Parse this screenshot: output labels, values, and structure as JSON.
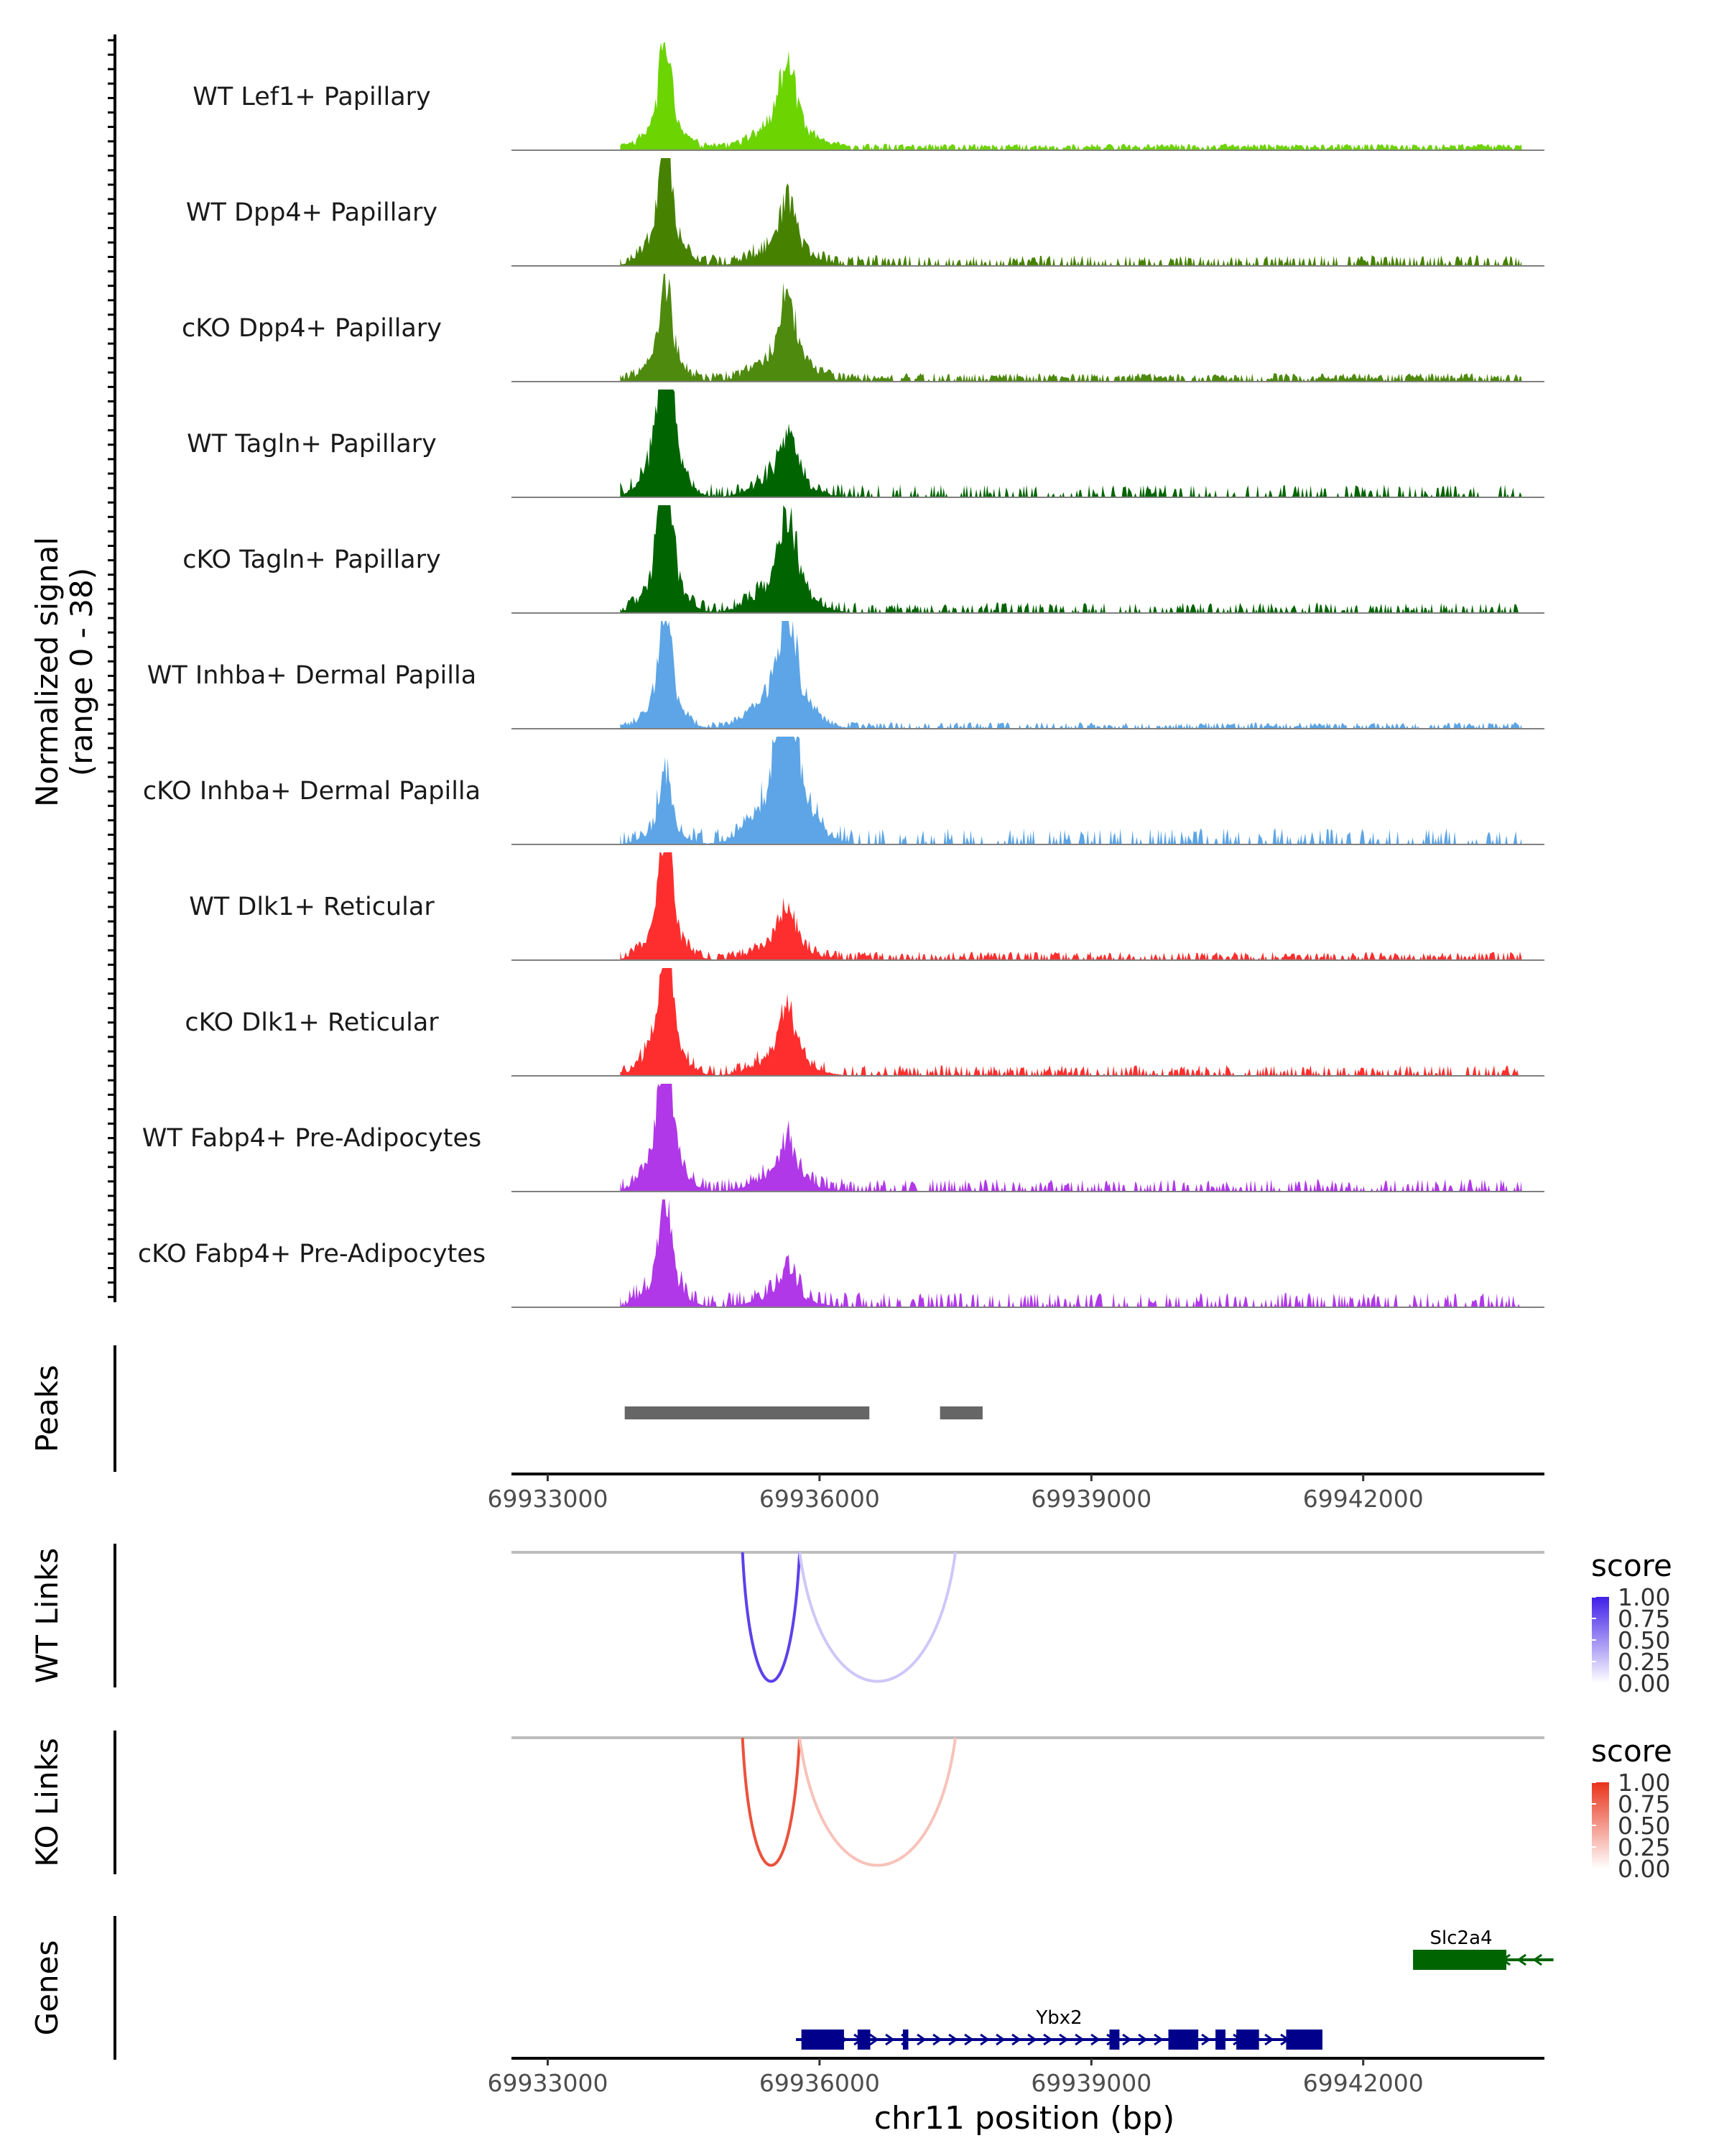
{
  "chart_data": {
    "type": "area",
    "title": "",
    "chromosome": "chr11",
    "xlim": [
      69932600,
      69944000
    ],
    "xlabel": "chr11 position (bp)",
    "x_ticks": [
      69933000,
      69936000,
      69939000,
      69942000
    ],
    "x_tick_labels": [
      "69933000",
      "69936000",
      "69939000",
      "69942000"
    ],
    "coverage": {
      "ylabel_line1": "Normalized signal",
      "ylabel_line2": "(range 0 - 38)",
      "ylim": [
        0,
        38
      ],
      "peak_centers": [
        69934300,
        69935650
      ],
      "tracks": [
        {
          "name": "WT Lef1+ Papillary",
          "color": "#6CD400",
          "peaks": [
            0.9,
            0.75
          ],
          "min_level": 0.02,
          "max_level": 0.06,
          "sparsity": 0.2,
          "seed": 11
        },
        {
          "name": "WT Dpp4+ Papillary",
          "color": "#468200",
          "peaks": [
            1.2,
            0.55
          ],
          "min_level": 0.03,
          "max_level": 0.1,
          "sparsity": 0.5,
          "seed": 23
        },
        {
          "name": "cKO Dpp4+ Papillary",
          "color": "#4E8A0E",
          "peaks": [
            0.8,
            0.7
          ],
          "min_level": 0.02,
          "max_level": 0.08,
          "sparsity": 0.3,
          "seed": 37
        },
        {
          "name": "WT Tagln+ Papillary",
          "color": "#006400",
          "peaks": [
            1.7,
            0.55
          ],
          "min_level": 0.02,
          "max_level": 0.12,
          "sparsity": 0.6,
          "seed": 41
        },
        {
          "name": "cKO Tagln+ Papillary",
          "color": "#006400",
          "peaks": [
            1.4,
            0.85
          ],
          "min_level": 0.02,
          "max_level": 0.1,
          "sparsity": 0.55,
          "seed": 53
        },
        {
          "name": "WT Inhba+ Dermal Papilla",
          "color": "#5DA5E6",
          "peaks": [
            1.0,
            1.1
          ],
          "min_level": 0.02,
          "max_level": 0.06,
          "sparsity": 0.45,
          "seed": 67
        },
        {
          "name": "cKO Inhba+ Dermal Papilla",
          "color": "#5DA5E6",
          "peaks": [
            0.6,
            1.65
          ],
          "min_level": 0.03,
          "max_level": 0.15,
          "sparsity": 0.65,
          "seed": 79
        },
        {
          "name": "WT Dlk1+ Reticular",
          "color": "#FF2E2E",
          "peaks": [
            1.15,
            0.45
          ],
          "min_level": 0.02,
          "max_level": 0.08,
          "sparsity": 0.4,
          "seed": 83
        },
        {
          "name": "cKO Dlk1+ Reticular",
          "color": "#FF2E2E",
          "peaks": [
            1.25,
            0.55
          ],
          "min_level": 0.02,
          "max_level": 0.1,
          "sparsity": 0.5,
          "seed": 97
        },
        {
          "name": "WT Fabp4+ Pre-Adipocytes",
          "color": "#B038E8",
          "peaks": [
            1.4,
            0.45
          ],
          "min_level": 0.03,
          "max_level": 0.12,
          "sparsity": 0.6,
          "seed": 101
        },
        {
          "name": "cKO Fabp4+ Pre-Adipocytes",
          "color": "#B038E8",
          "peaks": [
            0.95,
            0.35
          ],
          "min_level": 0.03,
          "max_level": 0.14,
          "sparsity": 0.6,
          "seed": 113
        }
      ]
    },
    "peaks": {
      "label": "Peaks",
      "color": "#666666",
      "regions": [
        {
          "start": 69933850,
          "end": 69936550
        },
        {
          "start": 69937330,
          "end": 69937800
        }
      ]
    },
    "links": [
      {
        "label": "WT Links",
        "legend_title": "score",
        "legend_ticks": [
          "1.00",
          "0.75",
          "0.50",
          "0.25",
          "0.00"
        ],
        "color_low": "#FFFFFF",
        "color_high": "#3F1FE8",
        "arcs": [
          {
            "start": 69935150,
            "end": 69935780,
            "score": 0.85
          },
          {
            "start": 69935780,
            "end": 69937500,
            "score": 0.25
          }
        ]
      },
      {
        "label": "KO Links",
        "legend_title": "score",
        "legend_ticks": [
          "1.00",
          "0.75",
          "0.50",
          "0.25",
          "0.00"
        ],
        "color_low": "#FFFFFF",
        "color_high": "#E8331A",
        "arcs": [
          {
            "start": 69935150,
            "end": 69935780,
            "score": 0.85
          },
          {
            "start": 69935780,
            "end": 69937500,
            "score": 0.3
          }
        ]
      }
    ],
    "genes": {
      "label": "Genes",
      "items": [
        {
          "name": "Slc2a4",
          "strand": "-",
          "color": "#006400",
          "start": 69942550,
          "end": 69944100,
          "exons": [
            [
              69942550,
              69943580
            ]
          ]
        },
        {
          "name": "Ybx2",
          "strand": "+",
          "color": "#00008B",
          "start": 69935740,
          "end": 69941550,
          "exons": [
            [
              69935800,
              69936270
            ],
            [
              69936420,
              69936560
            ],
            [
              69936920,
              69936980
            ],
            [
              69939200,
              69939310
            ],
            [
              69939850,
              69940180
            ],
            [
              69940370,
              69940480
            ],
            [
              69940600,
              69940850
            ],
            [
              69941150,
              69941550
            ]
          ]
        }
      ]
    }
  }
}
